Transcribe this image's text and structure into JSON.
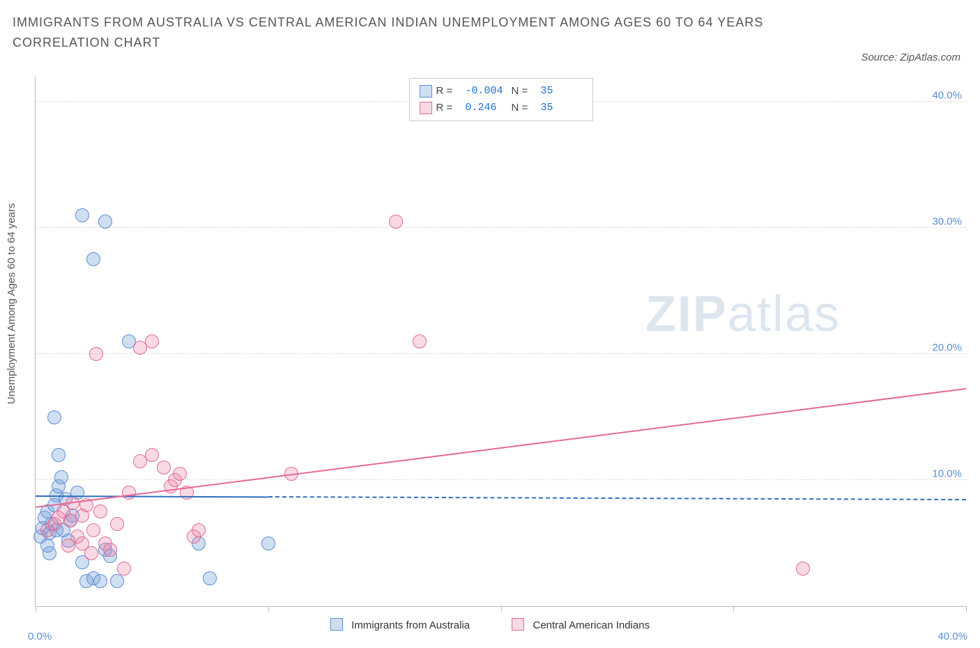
{
  "title": "IMMIGRANTS FROM AUSTRALIA VS CENTRAL AMERICAN INDIAN UNEMPLOYMENT AMONG AGES 60 TO 64 YEARS CORRELATION CHART",
  "source": "Source: ZipAtlas.com",
  "yaxis_label": "Unemployment Among Ages 60 to 64 years",
  "watermark_bold": "ZIP",
  "watermark_light": "atlas",
  "chart": {
    "type": "scatter",
    "xlim": [
      0,
      40
    ],
    "ylim": [
      0,
      42
    ],
    "yticks": [
      {
        "v": 10,
        "label": "10.0%"
      },
      {
        "v": 20,
        "label": "20.0%"
      },
      {
        "v": 30,
        "label": "30.0%"
      },
      {
        "v": 40,
        "label": "40.0%"
      }
    ],
    "xticks_major": [
      0,
      10,
      20,
      30,
      40
    ],
    "xtick_0_label": "0.0%",
    "xtick_max_label": "40.0%",
    "background": "#ffffff",
    "grid_color": "#dddddd",
    "axis_color": "#bbbbbb",
    "tick_label_color": "#5a8fd6",
    "marker_radius": 9,
    "marker_border_width": 1.5,
    "series": [
      {
        "name": "Immigrants from Australia",
        "key": "australia",
        "color_fill": "rgba(120,160,215,0.35)",
        "color_stroke": "#5a8fd6",
        "R": "-0.004",
        "N": "35",
        "trend": {
          "x0": 0,
          "y0": 8.7,
          "x1": 40,
          "y1": 8.4,
          "solid_until_x": 10,
          "color": "#2f6fc0",
          "width": 2
        },
        "points": [
          {
            "x": 0.2,
            "y": 5.5
          },
          {
            "x": 0.3,
            "y": 6.2
          },
          {
            "x": 0.4,
            "y": 7.0
          },
          {
            "x": 0.5,
            "y": 7.5
          },
          {
            "x": 0.6,
            "y": 5.8
          },
          {
            "x": 0.7,
            "y": 6.5
          },
          {
            "x": 0.8,
            "y": 8.0
          },
          {
            "x": 0.9,
            "y": 8.8
          },
          {
            "x": 1.0,
            "y": 9.5
          },
          {
            "x": 1.1,
            "y": 10.2
          },
          {
            "x": 0.5,
            "y": 4.8
          },
          {
            "x": 0.6,
            "y": 4.2
          },
          {
            "x": 1.2,
            "y": 6.0
          },
          {
            "x": 1.4,
            "y": 5.2
          },
          {
            "x": 1.6,
            "y": 7.2
          },
          {
            "x": 1.8,
            "y": 9.0
          },
          {
            "x": 2.0,
            "y": 3.5
          },
          {
            "x": 1.0,
            "y": 12.0
          },
          {
            "x": 0.8,
            "y": 15.0
          },
          {
            "x": 2.2,
            "y": 2.0
          },
          {
            "x": 2.5,
            "y": 2.2
          },
          {
            "x": 2.8,
            "y": 2.0
          },
          {
            "x": 3.0,
            "y": 4.5
          },
          {
            "x": 3.2,
            "y": 4.0
          },
          {
            "x": 3.5,
            "y": 2.0
          },
          {
            "x": 4.0,
            "y": 21.0
          },
          {
            "x": 2.0,
            "y": 31.0
          },
          {
            "x": 3.0,
            "y": 30.5
          },
          {
            "x": 2.5,
            "y": 27.5
          },
          {
            "x": 7.0,
            "y": 5.0
          },
          {
            "x": 7.5,
            "y": 2.2
          },
          {
            "x": 10.0,
            "y": 5.0
          },
          {
            "x": 1.5,
            "y": 6.8
          },
          {
            "x": 0.9,
            "y": 6.0
          },
          {
            "x": 1.3,
            "y": 8.5
          }
        ]
      },
      {
        "name": "Central American Indians",
        "key": "cai",
        "color_fill": "rgba(235,130,165,0.30)",
        "color_stroke": "#e46a96",
        "R": "0.246",
        "N": "35",
        "trend": {
          "x0": 0,
          "y0": 7.8,
          "x1": 40,
          "y1": 17.2,
          "solid_until_x": 40,
          "color": "#e46a96",
          "width": 2
        },
        "points": [
          {
            "x": 0.5,
            "y": 6.0
          },
          {
            "x": 0.8,
            "y": 6.5
          },
          {
            "x": 1.0,
            "y": 7.0
          },
          {
            "x": 1.2,
            "y": 7.5
          },
          {
            "x": 1.5,
            "y": 6.8
          },
          {
            "x": 1.8,
            "y": 5.5
          },
          {
            "x": 2.0,
            "y": 7.2
          },
          {
            "x": 2.2,
            "y": 8.0
          },
          {
            "x": 2.5,
            "y": 6.0
          },
          {
            "x": 2.8,
            "y": 7.5
          },
          {
            "x": 3.0,
            "y": 5.0
          },
          {
            "x": 3.2,
            "y": 4.5
          },
          {
            "x": 3.5,
            "y": 6.5
          },
          {
            "x": 3.8,
            "y": 3.0
          },
          {
            "x": 4.0,
            "y": 9.0
          },
          {
            "x": 4.5,
            "y": 11.5
          },
          {
            "x": 4.5,
            "y": 20.5
          },
          {
            "x": 5.0,
            "y": 21.0
          },
          {
            "x": 5.0,
            "y": 12.0
          },
          {
            "x": 5.5,
            "y": 11.0
          },
          {
            "x": 5.8,
            "y": 9.5
          },
          {
            "x": 6.0,
            "y": 10.0
          },
          {
            "x": 6.2,
            "y": 10.5
          },
          {
            "x": 6.5,
            "y": 9.0
          },
          {
            "x": 6.8,
            "y": 5.5
          },
          {
            "x": 7.0,
            "y": 6.0
          },
          {
            "x": 2.6,
            "y": 20.0
          },
          {
            "x": 11.0,
            "y": 10.5
          },
          {
            "x": 15.5,
            "y": 30.5
          },
          {
            "x": 16.5,
            "y": 21.0
          },
          {
            "x": 33.0,
            "y": 3.0
          },
          {
            "x": 1.4,
            "y": 4.8
          },
          {
            "x": 2.0,
            "y": 5.0
          },
          {
            "x": 2.4,
            "y": 4.2
          },
          {
            "x": 1.6,
            "y": 8.2
          }
        ]
      }
    ]
  },
  "legend_top": {
    "R_label": "R =",
    "N_label": "N ="
  },
  "legend_bottom": {
    "items": [
      {
        "swatch_fill": "rgba(120,160,215,0.35)",
        "swatch_stroke": "#5a8fd6",
        "label": "Immigrants from Australia"
      },
      {
        "swatch_fill": "rgba(235,130,165,0.30)",
        "swatch_stroke": "#e46a96",
        "label": "Central American Indians"
      }
    ]
  }
}
